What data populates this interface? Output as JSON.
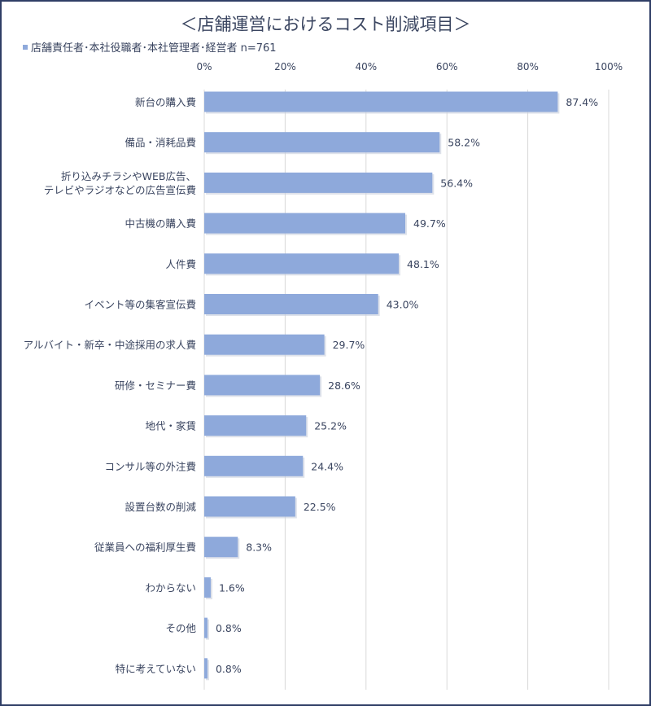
{
  "chart_data": {
    "type": "bar",
    "orientation": "horizontal",
    "title": "＜店舗運営におけるコスト削減項目＞",
    "legend": "店舗責任者･本社役職者･本社管理者･経営者 n=761",
    "legend_position": "top-left",
    "xlim": [
      0,
      100
    ],
    "xticks": [
      "0%",
      "20%",
      "40%",
      "60%",
      "80%",
      "100%"
    ],
    "grid": true,
    "bar_color": "#8ea9db",
    "categories": [
      [
        "新台の購入費"
      ],
      [
        "備品・消耗品費"
      ],
      [
        "折り込みチラシやWEB広告、",
        "テレビやラジオなどの広告宣伝費"
      ],
      [
        "中古機の購入費"
      ],
      [
        "人件費"
      ],
      [
        "イベント等の集客宣伝費"
      ],
      [
        "アルバイト・新卒・中途採用の求人費"
      ],
      [
        "研修・セミナー費"
      ],
      [
        "地代・家賃"
      ],
      [
        "コンサル等の外注費"
      ],
      [
        "設置台数の削減"
      ],
      [
        "従業員への福利厚生費"
      ],
      [
        "わからない"
      ],
      [
        "その他"
      ],
      [
        "特に考えていない"
      ]
    ],
    "values": [
      87.4,
      58.2,
      56.4,
      49.7,
      48.1,
      43.0,
      29.7,
      28.6,
      25.2,
      24.4,
      22.5,
      8.3,
      1.6,
      0.8,
      0.8
    ],
    "value_labels": [
      "87.4%",
      "58.2%",
      "56.4%",
      "49.7%",
      "48.1%",
      "43.0%",
      "29.7%",
      "28.6%",
      "25.2%",
      "24.4%",
      "22.5%",
      "8.3%",
      "1.6%",
      "0.8%",
      "0.8%"
    ]
  }
}
